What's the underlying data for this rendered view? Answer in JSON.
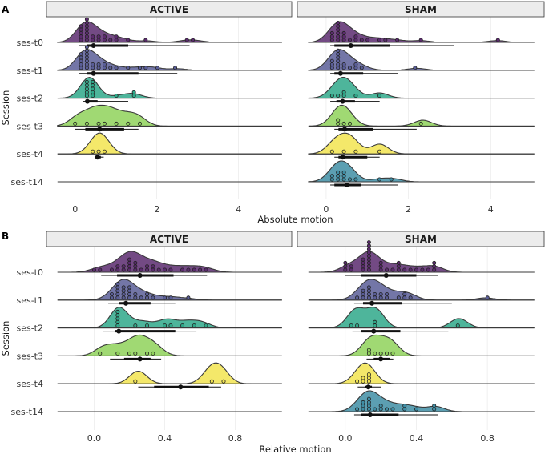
{
  "chart_data": [
    {
      "type": "ridgeline",
      "panel_label": "A",
      "facets": [
        "ACTIVE",
        "SHAM"
      ],
      "categories": [
        "ses-t0",
        "ses-t1",
        "ses-t2",
        "ses-t3",
        "ses-t4",
        "ses-t14"
      ],
      "ylabel": "Session",
      "xlabel": "Absolute motion",
      "xlim": [
        -0.7,
        5.3
      ],
      "xticks": [
        0,
        2,
        4
      ],
      "xtick_labels": [
        "0",
        "2",
        "4"
      ],
      "colors": [
        "#5b2a6e",
        "#5a5e98",
        "#2fa889",
        "#8fd25a",
        "#f2e450",
        "#3f8ea5"
      ],
      "groups": {
        "ACTIVE": [
          {
            "session": "ses-t0",
            "points": [
              0.15,
              0.15,
              0.15,
              0.15,
              0.15,
              0.25,
              0.25,
              0.25,
              0.25,
              0.35,
              0.35,
              0.35,
              0.45,
              0.45,
              0.55,
              0.55,
              0.65,
              0.75,
              0.85,
              0.95,
              1.05,
              1.25,
              1.75,
              2.7,
              2.95
            ],
            "median": 0.45,
            "q1": 0.3,
            "q3": 1.3,
            "whisker_low": 0.1,
            "whisker_high": 2.8
          },
          {
            "session": "ses-t1",
            "points": [
              0.15,
              0.15,
              0.15,
              0.15,
              0.15,
              0.25,
              0.25,
              0.25,
              0.25,
              0.35,
              0.35,
              0.35,
              0.45,
              0.45,
              0.55,
              0.55,
              0.65,
              0.75,
              0.85,
              1.0,
              1.3,
              1.55,
              1.8,
              1.95,
              2.5
            ],
            "median": 0.45,
            "q1": 0.3,
            "q3": 1.55,
            "whisker_low": 0.1,
            "whisker_high": 2.5
          },
          {
            "session": "ses-t2",
            "points": [
              0.3,
              0.3,
              0.3,
              0.3,
              0.3,
              0.4,
              0.4,
              0.4,
              0.4,
              0.4,
              1.05,
              1.4,
              1.45
            ],
            "median": 0.3,
            "q1": 0.25,
            "q3": 0.55,
            "whisker_low": 0.2,
            "whisker_high": 1.3
          },
          {
            "session": "ses-t3",
            "points": [
              0.05,
              0.35,
              0.55,
              0.75,
              0.95,
              1.25,
              1.55
            ],
            "median": 0.6,
            "q1": 0.25,
            "q3": 1.2,
            "whisker_low": 0.0,
            "whisker_high": 1.55
          },
          {
            "session": "ses-t4",
            "points": [
              0.5,
              0.6,
              0.7
            ],
            "median": 0.55,
            "q1": 0.52,
            "q3": 0.63,
            "whisker_low": 0.5,
            "whisker_high": 0.7
          },
          {
            "session": "ses-t14",
            "points": [],
            "median": null
          }
        ],
        "SHAM": [
          {
            "session": "ses-t0",
            "points": [
              0.15,
              0.15,
              0.15,
              0.25,
              0.25,
              0.25,
              0.35,
              0.35,
              0.35,
              0.45,
              0.45,
              0.45,
              0.55,
              0.65,
              0.75,
              0.85,
              1.05,
              1.25,
              1.45,
              1.75,
              2.3,
              4.15
            ],
            "median": 0.6,
            "q1": 0.2,
            "q3": 1.55,
            "whisker_low": 0.1,
            "whisker_high": 3.1
          },
          {
            "session": "ses-t1",
            "points": [
              0.15,
              0.15,
              0.15,
              0.25,
              0.25,
              0.25,
              0.35,
              0.35,
              0.35,
              0.45,
              0.45,
              0.55,
              0.65,
              0.75,
              0.9,
              2.2
            ],
            "median": 0.35,
            "q1": 0.2,
            "q3": 0.9,
            "whisker_low": 0.1,
            "whisker_high": 1.75
          },
          {
            "session": "ses-t2",
            "points": [
              0.2,
              0.35,
              0.4,
              0.5,
              0.65,
              1.3
            ],
            "median": 0.4,
            "q1": 0.25,
            "q3": 0.7,
            "whisker_low": 0.1,
            "whisker_high": 1.3
          },
          {
            "session": "ses-t3",
            "points": [
              0.25,
              0.35,
              0.4,
              0.55,
              2.35
            ],
            "median": 0.45,
            "q1": 0.3,
            "q3": 1.15,
            "whisker_low": 0.2,
            "whisker_high": 2.2
          },
          {
            "session": "ses-t4",
            "points": [
              0.2,
              0.45,
              0.65,
              1.3
            ],
            "median": 0.4,
            "q1": 0.3,
            "q3": 1.0,
            "whisker_low": 0.2,
            "whisker_high": 1.3
          },
          {
            "session": "ses-t14",
            "points": [
              0.15,
              0.2,
              0.25,
              0.3,
              0.35,
              0.4,
              0.45,
              0.5,
              0.6,
              0.65,
              1.3,
              1.65
            ],
            "median": 0.5,
            "q1": 0.2,
            "q3": 0.85,
            "whisker_low": 0.1,
            "whisker_high": 1.75
          }
        ]
      }
    },
    {
      "type": "ridgeline",
      "panel_label": "B",
      "facets": [
        "ACTIVE",
        "SHAM"
      ],
      "categories": [
        "ses-t0",
        "ses-t1",
        "ses-t2",
        "ses-t3",
        "ses-t4",
        "ses-t14"
      ],
      "ylabel": "Session",
      "xlabel": "Relative motion",
      "xlim": [
        -0.27,
        1.12
      ],
      "xticks": [
        0.0,
        0.4,
        0.8
      ],
      "xtick_labels": [
        "0.0",
        "0.4",
        "0.8"
      ],
      "colors": [
        "#5b2a6e",
        "#5a5e98",
        "#2fa889",
        "#8fd25a",
        "#f2e450",
        "#3f8ea5"
      ],
      "groups": {
        "ACTIVE": [
          {
            "session": "ses-t0",
            "points": [
              0.01,
              0.05,
              0.09,
              0.13,
              0.15,
              0.17,
              0.17,
              0.19,
              0.21,
              0.21,
              0.21,
              0.23,
              0.23,
              0.25,
              0.27,
              0.29,
              0.31,
              0.33,
              0.35,
              0.37,
              0.41,
              0.45,
              0.49,
              0.53,
              0.57,
              0.61,
              0.65
            ],
            "median": 0.26,
            "q1": 0.13,
            "q3": 0.45,
            "whisker_low": 0.04,
            "whisker_high": 0.64
          },
          {
            "session": "ses-t1",
            "points": [
              0.09,
              0.11,
              0.13,
              0.13,
              0.15,
              0.15,
              0.15,
              0.17,
              0.17,
              0.17,
              0.17,
              0.19,
              0.19,
              0.21,
              0.21,
              0.23,
              0.25,
              0.27,
              0.29,
              0.31,
              0.35,
              0.41,
              0.45,
              0.53
            ],
            "median": 0.18,
            "q1": 0.14,
            "q3": 0.32,
            "whisker_low": 0.08,
            "whisker_high": 0.46
          },
          {
            "session": "ses-t2",
            "points": [
              0.14,
              0.14,
              0.14,
              0.14,
              0.14,
              0.24,
              0.3,
              0.4,
              0.42,
              0.5,
              0.56,
              0.62
            ],
            "median": 0.14,
            "q1": 0.12,
            "q3": 0.46,
            "whisker_low": 0.05,
            "whisker_high": 0.58
          },
          {
            "session": "ses-t3",
            "points": [
              0.05,
              0.13,
              0.21,
              0.25,
              0.29,
              0.35
            ],
            "median": 0.26,
            "q1": 0.17,
            "q3": 0.32,
            "whisker_low": 0.09,
            "whisker_high": 0.38
          },
          {
            "session": "ses-t4",
            "points": [
              0.25,
              0.66,
              0.72
            ],
            "median": 0.49,
            "q1": 0.34,
            "q3": 0.65,
            "whisker_low": 0.25,
            "whisker_high": 0.72
          },
          {
            "session": "ses-t14",
            "points": [],
            "median": null
          }
        ],
        "SHAM": [
          {
            "session": "ses-t0",
            "points": [
              0.01,
              0.01,
              0.01,
              0.05,
              0.05,
              0.09,
              0.11,
              0.11,
              0.11,
              0.13,
              0.13,
              0.13,
              0.13,
              0.13,
              0.15,
              0.15,
              0.15,
              0.15,
              0.19,
              0.19,
              0.21,
              0.23,
              0.27,
              0.29,
              0.29,
              0.31,
              0.35,
              0.37,
              0.41,
              0.43,
              0.47,
              0.51,
              0.51,
              0.51
            ],
            "median": 0.23,
            "q1": 0.09,
            "q3": 0.4,
            "whisker_low": 0.0,
            "whisker_high": 0.52
          },
          {
            "session": "ses-t1",
            "points": [
              0.07,
              0.09,
              0.11,
              0.11,
              0.13,
              0.13,
              0.15,
              0.15,
              0.17,
              0.17,
              0.19,
              0.21,
              0.23,
              0.25,
              0.29,
              0.33,
              0.35,
              0.37,
              0.79
            ],
            "median": 0.15,
            "q1": 0.1,
            "q3": 0.32,
            "whisker_low": 0.05,
            "whisker_high": 0.6
          },
          {
            "session": "ses-t2",
            "points": [
              0.05,
              0.07,
              0.17,
              0.17,
              0.64
            ],
            "median": 0.16,
            "q1": 0.09,
            "q3": 0.31,
            "whisker_low": 0.04,
            "whisker_high": 0.58
          },
          {
            "session": "ses-t3",
            "points": [
              0.13,
              0.13,
              0.17,
              0.21,
              0.25,
              0.27
            ],
            "median": 0.2,
            "q1": 0.16,
            "q3": 0.25,
            "whisker_low": 0.12,
            "whisker_high": 0.27
          },
          {
            "session": "ses-t4",
            "points": [
              0.07,
              0.09,
              0.11,
              0.13,
              0.13,
              0.13
            ],
            "median": 0.13,
            "q1": 0.11,
            "q3": 0.15,
            "whisker_low": 0.07,
            "whisker_high": 0.2
          },
          {
            "session": "ses-t14",
            "points": [
              0.07,
              0.09,
              0.11,
              0.11,
              0.13,
              0.13,
              0.15,
              0.15,
              0.17,
              0.19,
              0.21,
              0.25,
              0.27,
              0.33,
              0.35,
              0.41,
              0.51,
              0.51
            ],
            "median": 0.14,
            "q1": 0.09,
            "q3": 0.3,
            "whisker_low": 0.05,
            "whisker_high": 0.52
          }
        ]
      }
    }
  ]
}
